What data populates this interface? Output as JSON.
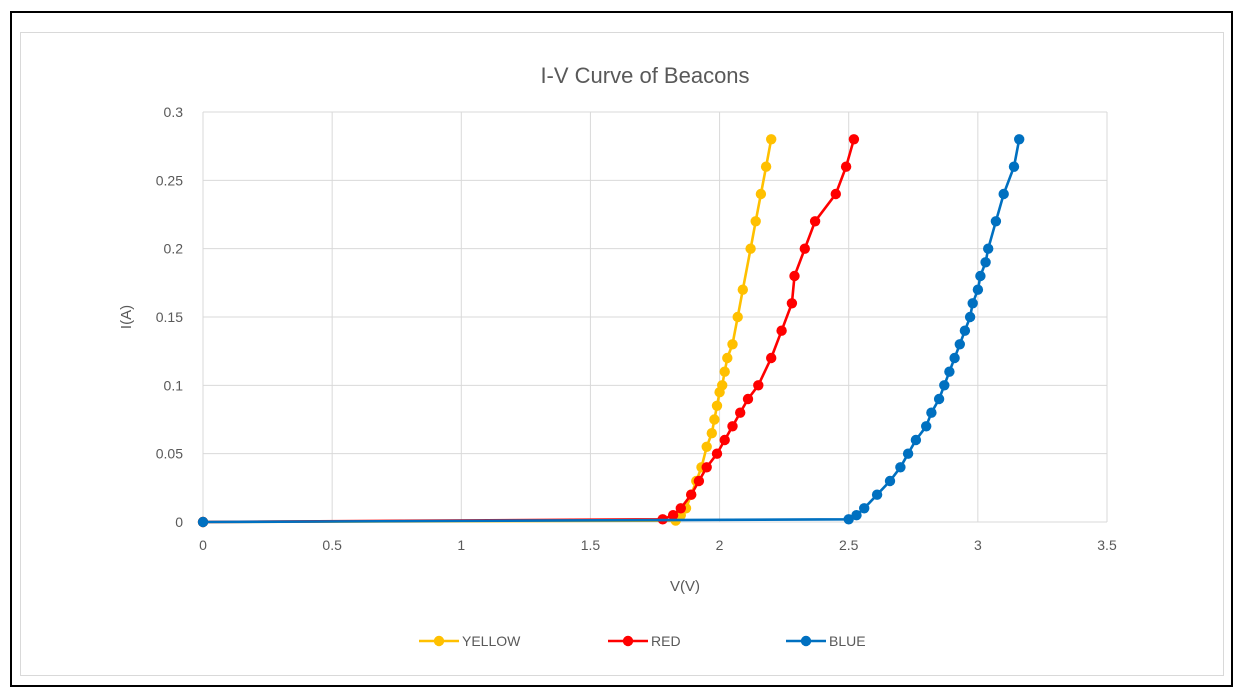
{
  "chart_data": {
    "type": "line",
    "title": "I-V Curve of Beacons",
    "xlabel": "V(V)",
    "ylabel": "I(A)",
    "xlim": [
      0,
      3.5
    ],
    "ylim": [
      0,
      0.3
    ],
    "x_ticks": [
      "0",
      "0.5",
      "1",
      "1.5",
      "2",
      "2.5",
      "3",
      "3.5"
    ],
    "y_ticks": [
      "0",
      "0.05",
      "0.1",
      "0.15",
      "0.2",
      "0.25",
      "0.3"
    ],
    "grid": true,
    "legend_position": "bottom",
    "series": [
      {
        "name": "YELLOW",
        "color": "#FFC000",
        "points": [
          [
            0,
            0
          ],
          [
            1.83,
            0.001
          ],
          [
            1.85,
            0.005
          ],
          [
            1.87,
            0.01
          ],
          [
            1.89,
            0.02
          ],
          [
            1.91,
            0.03
          ],
          [
            1.93,
            0.04
          ],
          [
            1.95,
            0.055
          ],
          [
            1.97,
            0.065
          ],
          [
            1.98,
            0.075
          ],
          [
            1.99,
            0.085
          ],
          [
            2.0,
            0.095
          ],
          [
            2.01,
            0.1
          ],
          [
            2.02,
            0.11
          ],
          [
            2.03,
            0.12
          ],
          [
            2.05,
            0.13
          ],
          [
            2.07,
            0.15
          ],
          [
            2.09,
            0.17
          ],
          [
            2.12,
            0.2
          ],
          [
            2.14,
            0.22
          ],
          [
            2.16,
            0.24
          ],
          [
            2.18,
            0.26
          ],
          [
            2.2,
            0.28
          ]
        ]
      },
      {
        "name": "RED",
        "color": "#FF0000",
        "points": [
          [
            0,
            0
          ],
          [
            1.78,
            0.002
          ],
          [
            1.82,
            0.005
          ],
          [
            1.85,
            0.01
          ],
          [
            1.89,
            0.02
          ],
          [
            1.92,
            0.03
          ],
          [
            1.95,
            0.04
          ],
          [
            1.99,
            0.05
          ],
          [
            2.02,
            0.06
          ],
          [
            2.05,
            0.07
          ],
          [
            2.08,
            0.08
          ],
          [
            2.11,
            0.09
          ],
          [
            2.15,
            0.1
          ],
          [
            2.2,
            0.12
          ],
          [
            2.24,
            0.14
          ],
          [
            2.28,
            0.16
          ],
          [
            2.29,
            0.18
          ],
          [
            2.33,
            0.2
          ],
          [
            2.37,
            0.22
          ],
          [
            2.45,
            0.24
          ],
          [
            2.49,
            0.26
          ],
          [
            2.52,
            0.28
          ]
        ]
      },
      {
        "name": "BLUE",
        "color": "#0070C0",
        "points": [
          [
            0,
            0
          ],
          [
            2.5,
            0.002
          ],
          [
            2.53,
            0.005
          ],
          [
            2.56,
            0.01
          ],
          [
            2.61,
            0.02
          ],
          [
            2.66,
            0.03
          ],
          [
            2.7,
            0.04
          ],
          [
            2.73,
            0.05
          ],
          [
            2.76,
            0.06
          ],
          [
            2.8,
            0.07
          ],
          [
            2.82,
            0.08
          ],
          [
            2.85,
            0.09
          ],
          [
            2.87,
            0.1
          ],
          [
            2.89,
            0.11
          ],
          [
            2.91,
            0.12
          ],
          [
            2.93,
            0.13
          ],
          [
            2.95,
            0.14
          ],
          [
            2.97,
            0.15
          ],
          [
            2.98,
            0.16
          ],
          [
            3.0,
            0.17
          ],
          [
            3.01,
            0.18
          ],
          [
            3.03,
            0.19
          ],
          [
            3.04,
            0.2
          ],
          [
            3.07,
            0.22
          ],
          [
            3.1,
            0.24
          ],
          [
            3.14,
            0.26
          ],
          [
            3.16,
            0.28
          ]
        ]
      }
    ]
  }
}
